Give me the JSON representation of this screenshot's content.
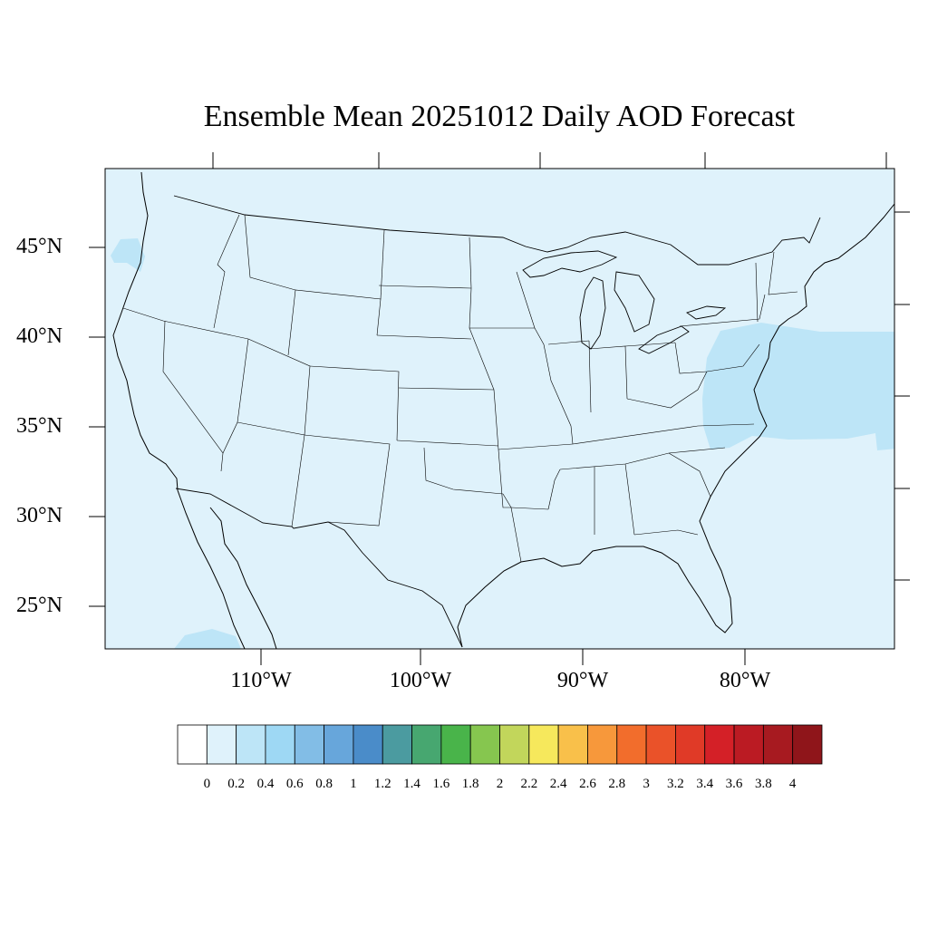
{
  "title": "Ensemble Mean 20251012 Daily AOD Forecast",
  "lat_labels": [
    "45°N",
    "40°N",
    "35°N",
    "30°N",
    "25°N"
  ],
  "lon_labels": [
    "110°W",
    "100°W",
    "90°W",
    "80°W"
  ],
  "colorbar": {
    "labels": [
      "0",
      "0.2",
      "0.4",
      "0.6",
      "0.8",
      "1",
      "1.2",
      "1.4",
      "1.6",
      "1.8",
      "2",
      "2.2",
      "2.4",
      "2.6",
      "2.8",
      "3",
      "3.2",
      "3.4",
      "3.6",
      "3.8",
      "4"
    ],
    "colors": [
      "#ffffff",
      "#dff2fb",
      "#bde5f7",
      "#9ed8f4",
      "#82bde6",
      "#67a6db",
      "#4a8cc9",
      "#4b9ba0",
      "#47a770",
      "#49b44a",
      "#86c64f",
      "#c2d65b",
      "#f6e85c",
      "#f9c04a",
      "#f7983b",
      "#f26d2c",
      "#ea5229",
      "#e03a27",
      "#d42027",
      "#bb1b23",
      "#a71a20",
      "#8f151a"
    ]
  },
  "field_colors": {
    "background": "#dff2fb",
    "enhanced": "#bde5f7"
  }
}
